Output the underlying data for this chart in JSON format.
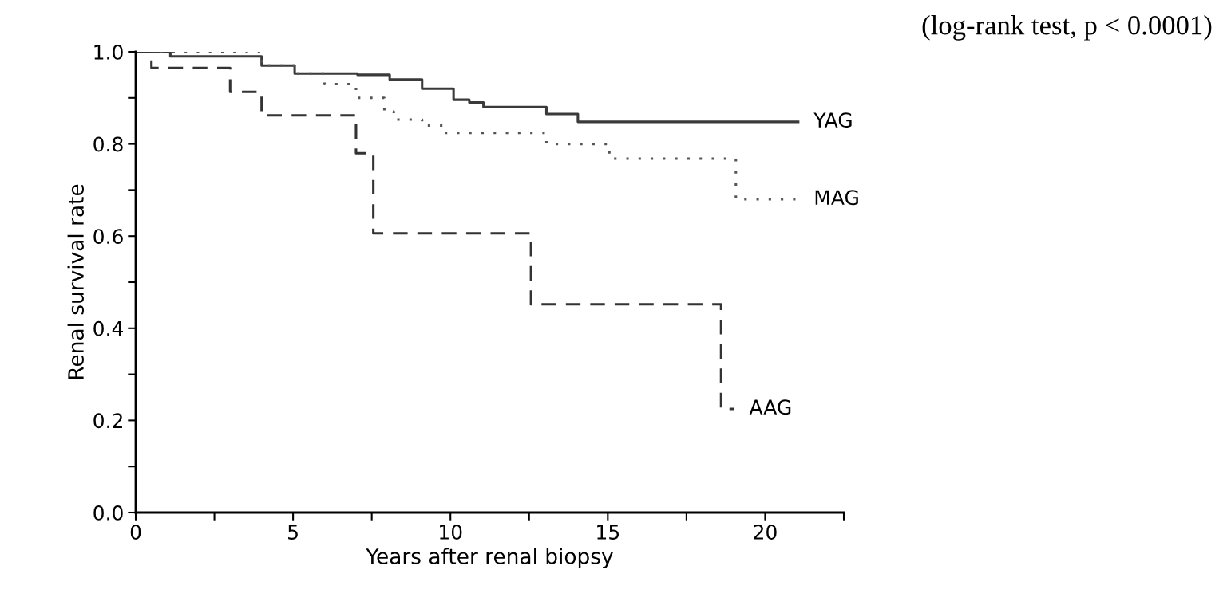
{
  "chart_data": {
    "type": "step",
    "xlabel": "Years after renal biopsy",
    "ylabel": "Renal survival rate",
    "annotations": [
      "(log-rank test, p < 0.0001)"
    ],
    "xlim": [
      0,
      22.5
    ],
    "ylim": [
      0,
      1.0
    ],
    "xticks": [
      0,
      {
        "value": 2.5,
        "label": null
      },
      5,
      {
        "value": 7.5,
        "label": null
      },
      10,
      {
        "value": 12.5,
        "label": null
      },
      15,
      {
        "value": 17.5,
        "label": null
      },
      20,
      {
        "value": 22.5,
        "label": null
      }
    ],
    "yticks": [
      {
        "value": 0,
        "label": "0.0"
      },
      {
        "value": 0.1,
        "label": null
      },
      0.2,
      {
        "value": 0.3,
        "label": null
      },
      0.4,
      {
        "value": 0.5,
        "label": null
      },
      0.6,
      {
        "value": 0.7,
        "label": null
      },
      0.8,
      {
        "value": 0.9,
        "label": null
      },
      {
        "value": 1.0,
        "label": "1.0"
      }
    ],
    "grid": false,
    "legend": false,
    "series": [
      {
        "name": "YAG",
        "color": "#3a3a3a",
        "line_style": "solid",
        "x": [
          0,
          1.1,
          4.0,
          5.05,
          7.05,
          8.07,
          9.1,
          10.1,
          10.6,
          11.05,
          13.05,
          14.05,
          21.05
        ],
        "values": [
          1.0,
          0.99,
          0.97,
          0.953,
          0.95,
          0.94,
          0.92,
          0.896,
          0.89,
          0.88,
          0.865,
          0.848,
          0.848
        ]
      },
      {
        "name": "MAG",
        "color": "#555555",
        "line_style": "dotted",
        "x": [
          0,
          4.0,
          5.05,
          6.0,
          7.0,
          7.9,
          8.2,
          9.1,
          9.75,
          13.05,
          15.05,
          19.07,
          21.05
        ],
        "values": [
          1.0,
          0.97,
          0.953,
          0.93,
          0.9,
          0.87,
          0.853,
          0.84,
          0.824,
          0.8,
          0.768,
          0.68,
          0.68
        ]
      },
      {
        "name": "AAG",
        "color": "#333333",
        "line_style": "dashed",
        "x": [
          0,
          0.5,
          3.0,
          4.0,
          7.0,
          7.55,
          12.56,
          18.6,
          19.0
        ],
        "values": [
          1.0,
          0.965,
          0.913,
          0.862,
          0.78,
          0.606,
          0.452,
          0.225,
          0.225
        ]
      }
    ]
  }
}
